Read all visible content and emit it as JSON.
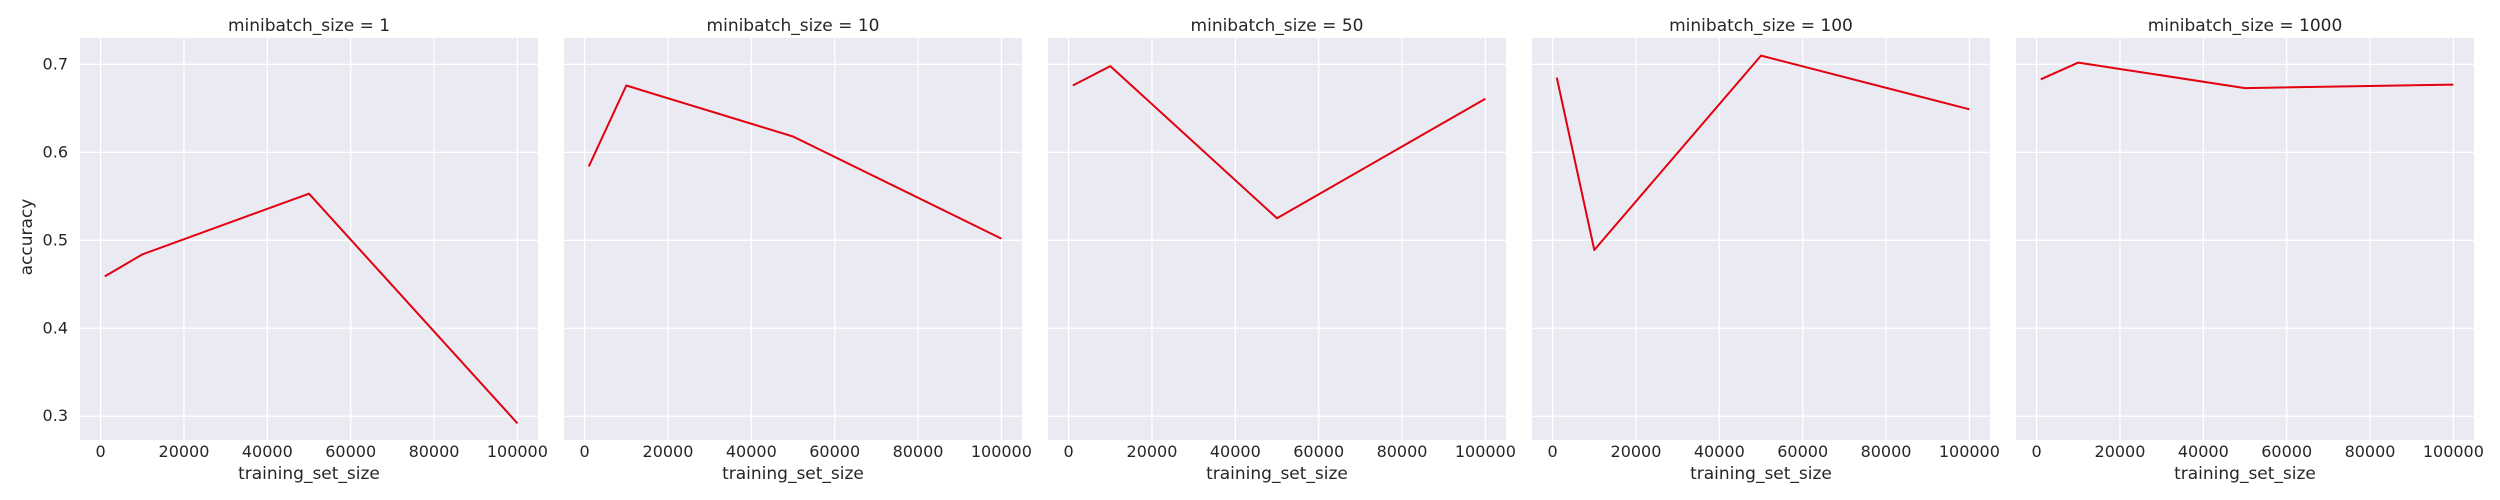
{
  "chart_data": {
    "type": "line",
    "title": "",
    "xlabel": "training_set_size",
    "ylabel": "accuracy",
    "grid": true,
    "line_color": "#e3000f",
    "panel_background": "#eaeaf2",
    "grid_color": "#ffffff",
    "xlim": [
      -4950,
      104950
    ],
    "ylim": [
      0.273,
      0.73
    ],
    "x_ticks": [
      0,
      20000,
      40000,
      60000,
      80000,
      100000
    ],
    "x_tick_labels": [
      "0",
      "20000",
      "40000",
      "60000",
      "80000",
      "100000"
    ],
    "y_ticks": [
      0.3,
      0.4,
      0.5,
      0.6,
      0.7
    ],
    "y_tick_labels": [
      "0.3",
      "0.4",
      "0.5",
      "0.6",
      "0.7"
    ],
    "panels": [
      {
        "title": "minibatch_size = 1",
        "x": [
          1000,
          10000,
          50000,
          100000
        ],
        "y": [
          0.459,
          0.484,
          0.553,
          0.292
        ]
      },
      {
        "title": "minibatch_size = 10",
        "x": [
          1000,
          10000,
          50000,
          100000
        ],
        "y": [
          0.584,
          0.676,
          0.618,
          0.502
        ]
      },
      {
        "title": "minibatch_size = 50",
        "x": [
          1000,
          10000,
          50000,
          100000
        ],
        "y": [
          0.676,
          0.698,
          0.525,
          0.661
        ]
      },
      {
        "title": "minibatch_size = 100",
        "x": [
          1000,
          10000,
          50000,
          100000
        ],
        "y": [
          0.685,
          0.489,
          0.71,
          0.649
        ]
      },
      {
        "title": "minibatch_size = 1000",
        "x": [
          1000,
          10000,
          50000,
          100000
        ],
        "y": [
          0.683,
          0.702,
          0.673,
          0.677
        ]
      }
    ]
  }
}
